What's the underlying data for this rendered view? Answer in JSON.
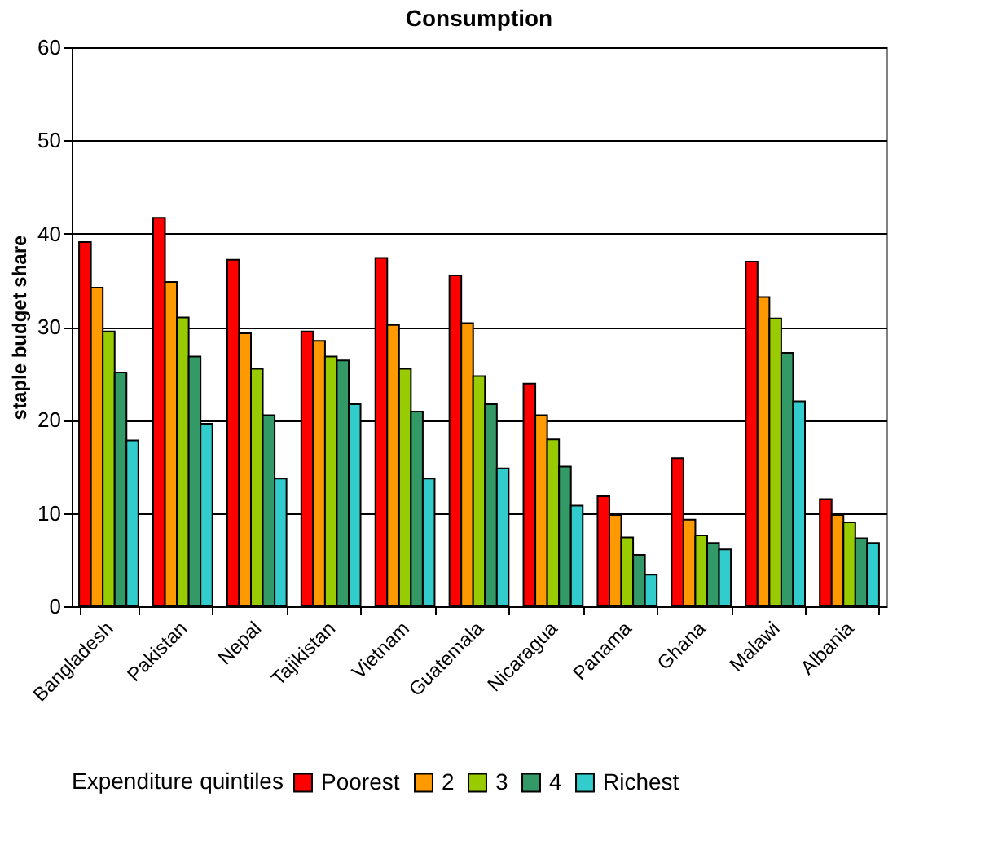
{
  "chart_data": {
    "type": "bar",
    "title": "Consumption",
    "ylabel": "staple budget share",
    "legend_title": "Expenditure quintiles",
    "categories": [
      "Bangladesh",
      "Pakistan",
      "Nepal",
      "Tajikistan",
      "Vietnam",
      "Guatemala",
      "Nicaragua",
      "Panama",
      "Ghana",
      "Malawi",
      "Albania"
    ],
    "series": [
      {
        "name": "Poorest",
        "color": "#ff0000",
        "values": [
          39.1,
          41.7,
          37.2,
          29.5,
          37.4,
          35.5,
          23.9,
          11.8,
          15.9,
          37.0,
          11.5
        ]
      },
      {
        "name": "2",
        "color": "#ff9900",
        "values": [
          34.2,
          34.8,
          29.3,
          28.5,
          30.2,
          30.4,
          20.5,
          9.8,
          9.3,
          33.2,
          9.8
        ]
      },
      {
        "name": "3",
        "color": "#99cc00",
        "values": [
          29.5,
          31.0,
          25.5,
          26.8,
          25.5,
          24.7,
          17.9,
          7.4,
          7.6,
          30.9,
          9.0
        ]
      },
      {
        "name": "4",
        "color": "#339966",
        "values": [
          25.1,
          26.8,
          20.5,
          26.4,
          20.9,
          21.7,
          15.0,
          5.5,
          6.8,
          27.2,
          7.3
        ]
      },
      {
        "name": "Richest",
        "color": "#33cccc",
        "values": [
          17.8,
          19.6,
          13.7,
          21.7,
          13.7,
          14.8,
          10.8,
          3.4,
          6.1,
          22.0,
          6.8
        ]
      }
    ],
    "ylim": [
      0,
      60
    ],
    "yticks": [
      0,
      10,
      20,
      30,
      40,
      50,
      60
    ],
    "grid": "y",
    "legend": "bottom"
  }
}
